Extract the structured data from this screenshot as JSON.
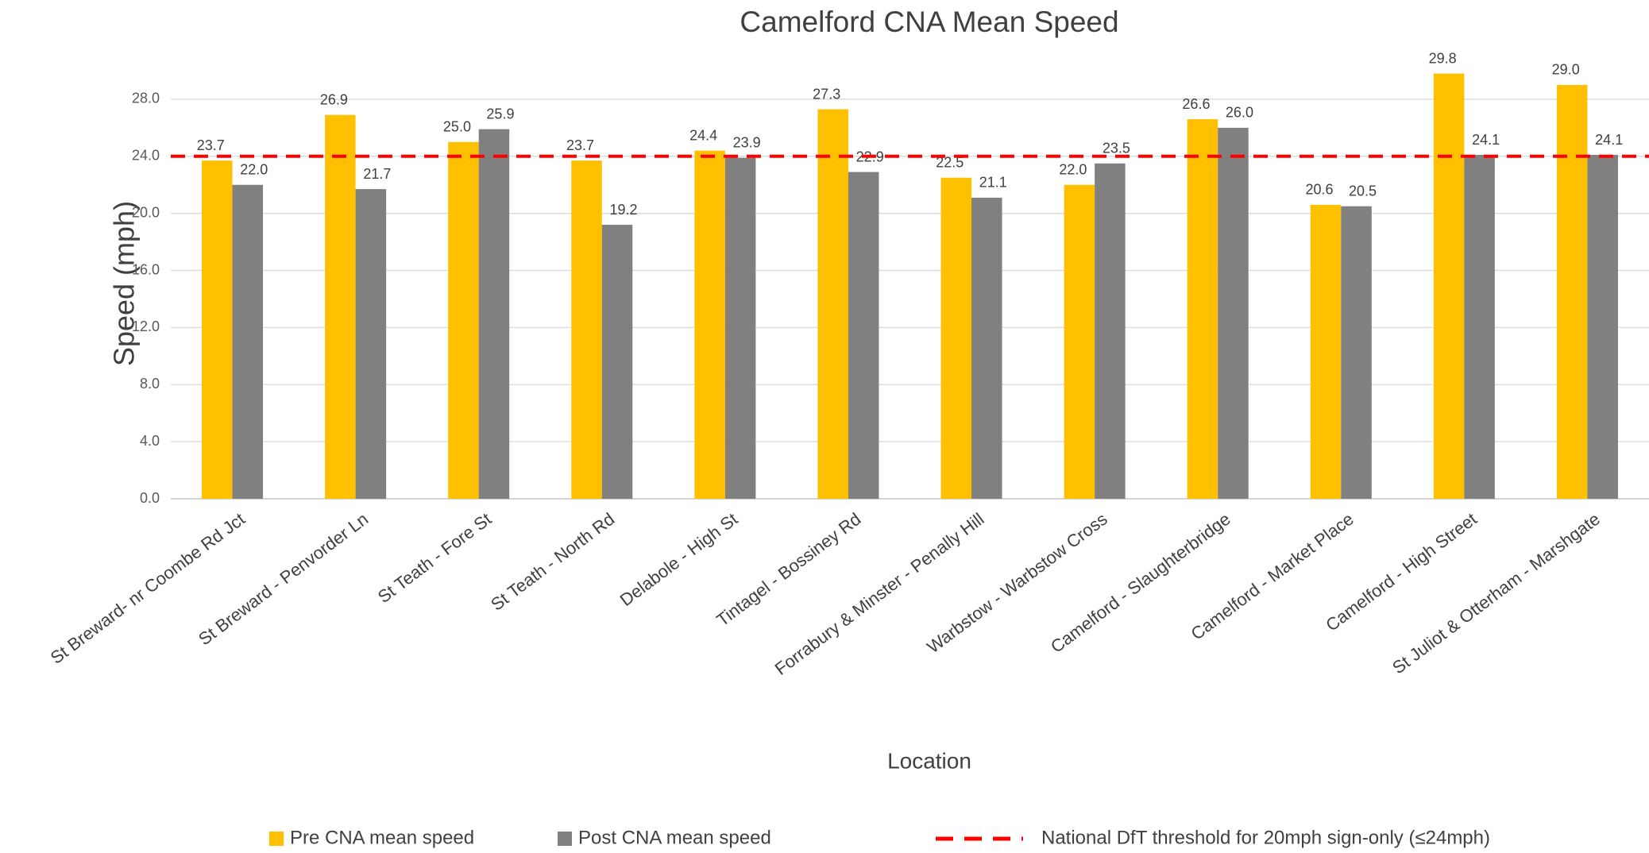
{
  "chart_data": {
    "type": "bar",
    "title": "Camelford CNA Mean Speed",
    "x_label": "Location",
    "y_label": "Speed (mph)",
    "categories": [
      "St Breward- nr Coombe Rd Jct",
      "St Breward - Penvorder Ln",
      "St Teath - Fore St",
      "St Teath - North Rd",
      "Delabole - High St",
      "Tintagel - Bossiney Rd",
      "Forrabury & Minster - Penally Hill",
      "Warbstow - Warbstow Cross",
      "Camelford - Slaughterbridge",
      "Camelford - Market Place",
      "Camelford - High Street",
      "St Juliot & Otterham - Marshgate"
    ],
    "series": [
      {
        "name": "Pre CNA mean speed",
        "color": "#ffc000",
        "values": [
          23.7,
          26.9,
          25.0,
          23.7,
          24.4,
          27.3,
          22.5,
          22.0,
          26.6,
          20.6,
          29.8,
          29.0
        ],
        "value_labels": [
          "23.7",
          "26.9",
          "25.0",
          "23.7",
          "24.4",
          "27.3",
          "22.5",
          "22.0",
          "26.6",
          "20.6",
          "29.8",
          "29.0"
        ]
      },
      {
        "name": "Post CNA mean speed",
        "color": "#808080",
        "values": [
          22.0,
          21.7,
          25.9,
          19.2,
          23.9,
          22.9,
          21.1,
          23.5,
          26.0,
          20.5,
          24.1,
          24.1
        ],
        "value_labels": [
          "22.0",
          "21.7",
          "25.9",
          "19.2",
          "23.9",
          "22.9",
          "21.1",
          "23.5",
          "26.0",
          "20.5",
          "24.1",
          "24.1"
        ]
      }
    ],
    "threshold": {
      "name": "National DfT threshold for 20mph sign-only (≤24mph)",
      "value": 24,
      "color": "#ff0000"
    },
    "ylim": [
      0,
      30
    ],
    "yticks": [
      {
        "value": 0,
        "label": "0.0"
      },
      {
        "value": 4,
        "label": "4.0"
      },
      {
        "value": 8,
        "label": "8.0"
      },
      {
        "value": 12,
        "label": "12.0"
      },
      {
        "value": 16,
        "label": "16.0"
      },
      {
        "value": 20,
        "label": "20.0"
      },
      {
        "value": 24,
        "label": "24.0"
      },
      {
        "value": 28,
        "label": "28.0"
      }
    ],
    "grid": true
  }
}
